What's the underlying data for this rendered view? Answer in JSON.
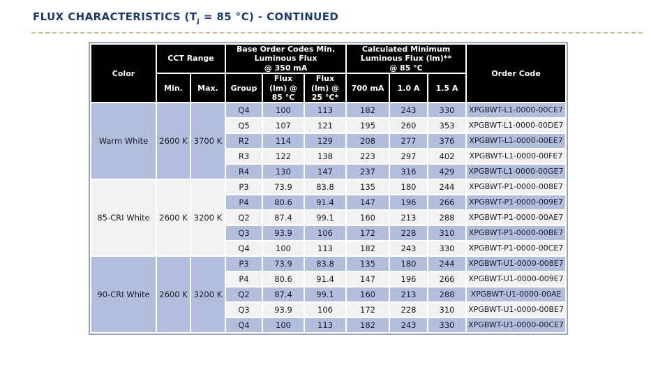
{
  "page": {
    "title": {
      "prefix": "FLUX CHARACTERISTICS (T",
      "subscript": "J",
      "suffix": " = 85 °C) - CONTINUED"
    }
  },
  "table": {
    "group_headers": {
      "color": "Color",
      "cct_range": "CCT Range",
      "base_order_codes": "Base Order Codes Min.\nLuminous Flux\n@ 350 mA",
      "calculated_minimum": "Calculated Minimum\nLuminous Flux (lm)**\n@ 85 °C",
      "order_code": "Order Code"
    },
    "sub_headers": {
      "min": "Min.",
      "max": "Max.",
      "group": "Group",
      "flux_85": "Flux\n(lm) @\n85 °C",
      "flux_25": "Flux\n(lm) @\n25 °C*",
      "a700": "700 mA",
      "a1000": "1.0 A",
      "a1500": "1.5 A"
    },
    "blocks": [
      {
        "color": "Warm White",
        "cct_min": "2600 K",
        "cct_max": "3700 K",
        "rows": [
          {
            "group": "Q4",
            "flux_85": "100",
            "flux_25": "113",
            "a700": "182",
            "a1000": "243",
            "a1500": "330",
            "order_code": "XPGBWT-L1-0000-00CE7"
          },
          {
            "group": "Q5",
            "flux_85": "107",
            "flux_25": "121",
            "a700": "195",
            "a1000": "260",
            "a1500": "353",
            "order_code": "XPGBWT-L1-0000-00DE7"
          },
          {
            "group": "R2",
            "flux_85": "114",
            "flux_25": "129",
            "a700": "208",
            "a1000": "277",
            "a1500": "376",
            "order_code": "XPGBWT-L1-0000-00EE7"
          },
          {
            "group": "R3",
            "flux_85": "122",
            "flux_25": "138",
            "a700": "223",
            "a1000": "297",
            "a1500": "402",
            "order_code": "XPGBWT-L1-0000-00FE7"
          },
          {
            "group": "R4",
            "flux_85": "130",
            "flux_25": "147",
            "a700": "237",
            "a1000": "316",
            "a1500": "429",
            "order_code": "XPGBWT-L1-0000-00GE7"
          }
        ]
      },
      {
        "color": "85-CRI White",
        "cct_min": "2600 K",
        "cct_max": "3200 K",
        "rows": [
          {
            "group": "P3",
            "flux_85": "73.9",
            "flux_25": "83.8",
            "a700": "135",
            "a1000": "180",
            "a1500": "244",
            "order_code": "XPGBWT-P1-0000-008E7"
          },
          {
            "group": "P4",
            "flux_85": "80.6",
            "flux_25": "91.4",
            "a700": "147",
            "a1000": "196",
            "a1500": "266",
            "order_code": "XPGBWT-P1-0000-009E7"
          },
          {
            "group": "Q2",
            "flux_85": "87.4",
            "flux_25": "99.1",
            "a700": "160",
            "a1000": "213",
            "a1500": "288",
            "order_code": "XPGBWT-P1-0000-00AE7"
          },
          {
            "group": "Q3",
            "flux_85": "93.9",
            "flux_25": "106",
            "a700": "172",
            "a1000": "228",
            "a1500": "310",
            "order_code": "XPGBWT-P1-0000-00BE7"
          },
          {
            "group": "Q4",
            "flux_85": "100",
            "flux_25": "113",
            "a700": "182",
            "a1000": "243",
            "a1500": "330",
            "order_code": "XPGBWT-P1-0000-00CE7"
          }
        ]
      },
      {
        "color": "90-CRI White",
        "cct_min": "2600 K",
        "cct_max": "3200 K",
        "rows": [
          {
            "group": "P3",
            "flux_85": "73.9",
            "flux_25": "83.8",
            "a700": "135",
            "a1000": "180",
            "a1500": "244",
            "order_code": "XPGBWT-U1-0000-008E7"
          },
          {
            "group": "P4",
            "flux_85": "80.6",
            "flux_25": "91.4",
            "a700": "147",
            "a1000": "196",
            "a1500": "266",
            "order_code": "XPGBWT-U1-0000-009E7"
          },
          {
            "group": "Q2",
            "flux_85": "87.4",
            "flux_25": "99.1",
            "a700": "160",
            "a1000": "213",
            "a1500": "288",
            "order_code": "XPGBWT-U1-0000-00AE"
          },
          {
            "group": "Q3",
            "flux_85": "93.9",
            "flux_25": "106",
            "a700": "172",
            "a1000": "228",
            "a1500": "310",
            "order_code": "XPGBWT-U1-0000-00BE7"
          },
          {
            "group": "Q4",
            "flux_85": "100",
            "flux_25": "113",
            "a700": "182",
            "a1000": "243",
            "a1500": "330",
            "order_code": "XPGBWT-U1-0000-00CE7"
          }
        ]
      }
    ]
  },
  "colors": {
    "title_text": "#1c3a6e",
    "title_rule": "#c2bd7e",
    "header_bg": "#000000",
    "header_text": "#ffffff",
    "row_lavender": "#b3bedd",
    "row_light": "#f2f2f2",
    "merged_gray": "#e9e9e9",
    "table_border": "#9aa2ba"
  }
}
